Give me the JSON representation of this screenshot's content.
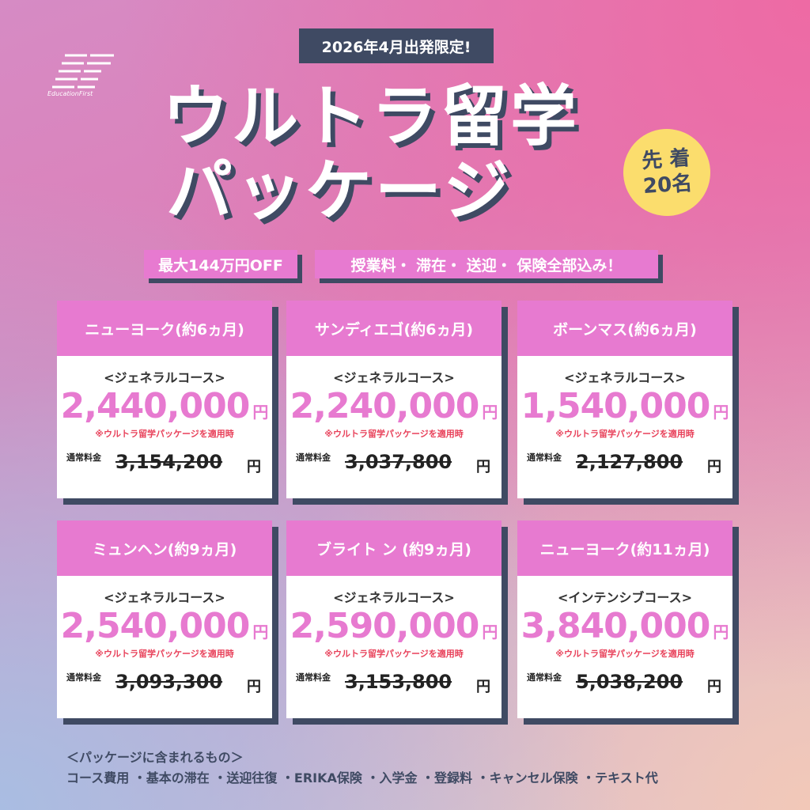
{
  "logo": {
    "mark": "EF",
    "tagline": "EducationFirst"
  },
  "top_badge": "2026年4月出発限定!",
  "title_line1": "ウルトラ留学",
  "title_line2": "パッケージ",
  "limited_badge": {
    "line1": "先 着",
    "line2": "20名"
  },
  "tags": {
    "discount": "最大144万円OFF",
    "included": "授業料・ 滞在・ 送迎・ 保険全部込み！"
  },
  "plans": [
    {
      "title": "ニューヨーク(約6ヵ月)",
      "course": "<ジェネラルコース>",
      "price": "2,440,000",
      "yen": "円",
      "note": "※ウルトラ留学パッケージを適用時",
      "regular_label": "通常料金",
      "regular_price": "3,154,200",
      "regular_yen": "円"
    },
    {
      "title": "サンディエゴ(約6ヵ月)",
      "course": "<ジェネラルコース>",
      "price": "2,240,000",
      "yen": "円",
      "note": "※ウルトラ留学パッケージを適用時",
      "regular_label": "通常料金",
      "regular_price": "3,037,800",
      "regular_yen": "円"
    },
    {
      "title": "ボーンマス(約6ヵ月)",
      "course": "<ジェネラルコース>",
      "price": "1,540,000",
      "yen": "円",
      "note": "※ウルトラ留学パッケージを適用時",
      "regular_label": "通常料金",
      "regular_price": "2,127,800",
      "regular_yen": "円"
    },
    {
      "title": "ミュンヘン(約9ヵ月)",
      "course": "<ジェネラルコース>",
      "price": "2,540,000",
      "yen": "円",
      "note": "※ウルトラ留学パッケージを適用時",
      "regular_label": "通常料金",
      "regular_price": "3,093,300",
      "regular_yen": "円"
    },
    {
      "title": "ブライト ン (約9ヵ月)",
      "course": "<ジェネラルコース>",
      "price": "2,590,000",
      "yen": "円",
      "note": "※ウルトラ留学パッケージを適用時",
      "regular_label": "通常料金",
      "regular_price": "3,153,800",
      "regular_yen": "円"
    },
    {
      "title": "ニューヨーク(約11ヵ月)",
      "course": "<インテンシブコース>",
      "price": "3,840,000",
      "yen": "円",
      "note": "※ウルトラ留学パッケージを適用時",
      "regular_label": "通常料金",
      "regular_price": "5,038,200",
      "regular_yen": "円"
    }
  ],
  "footer": {
    "heading": "＜パッケージに含まれるもの＞",
    "items": "コース費用 ・基本の滞在 ・送迎往復 ・ERIKA保険 ・入学金 ・登録料 ・キャンセル保険 ・テキスト代"
  },
  "colors": {
    "accent_pink": "#e77ad0",
    "navy": "#3f4a63",
    "yellow": "#fbdd6d",
    "note_red": "#e8415a"
  }
}
